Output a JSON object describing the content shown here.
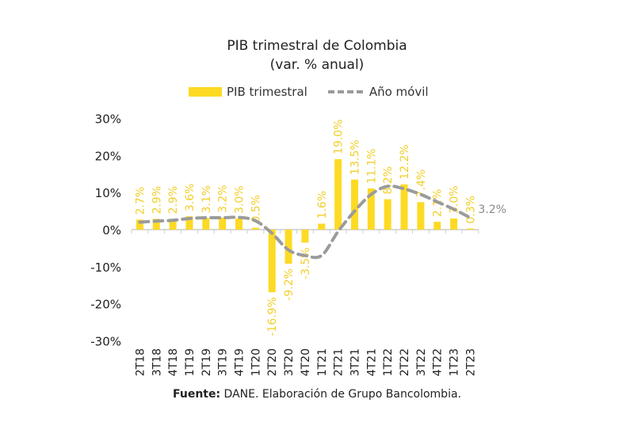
{
  "chart_data": {
    "type": "bar",
    "title": "PIB trimestral de Colombia",
    "subtitle": "(var. % anual)",
    "categories": [
      "2T18",
      "3T18",
      "4T18",
      "1T19",
      "2T19",
      "3T19",
      "4T19",
      "1T20",
      "2T20",
      "3T20",
      "4T20",
      "1T21",
      "2T21",
      "3T21",
      "4T21",
      "1T22",
      "2T22",
      "3T22",
      "4T22",
      "1T23",
      "2T23"
    ],
    "series": [
      {
        "name": "PIB trimestral",
        "type": "bar",
        "color": "#FDDA24",
        "values": [
          2.7,
          2.9,
          2.9,
          3.6,
          3.1,
          3.2,
          3.0,
          0.5,
          -16.9,
          -9.2,
          -3.5,
          1.6,
          19.0,
          13.5,
          11.1,
          8.2,
          12.2,
          7.4,
          2.1,
          3.0,
          0.3
        ],
        "labels": [
          "2.7%",
          "2.9%",
          "2.9%",
          "3.6%",
          "3.1%",
          "3.2%",
          "3.0%",
          "0.5%",
          "-16.9%",
          "-9.2%",
          "-3.5%",
          "1.6%",
          "19.0%",
          "13.5%",
          "11.1%",
          "8.2%",
          "12.2%",
          "7.4%",
          "2.1%",
          "3.0%",
          "0.3%"
        ]
      },
      {
        "name": "Año móvil",
        "type": "line",
        "style": "dashed",
        "color": "#9b9b9b",
        "values": [
          2.0,
          2.3,
          2.5,
          3.0,
          3.2,
          3.2,
          3.3,
          2.4,
          -1.0,
          -5.5,
          -7.0,
          -7.0,
          -0.5,
          5.0,
          9.5,
          11.7,
          11.0,
          9.5,
          7.5,
          5.5,
          3.2
        ],
        "end_label": "3.2%"
      }
    ],
    "yticks": [
      "30%",
      "20%",
      "10%",
      "0%",
      "-10%",
      "-20%",
      "-30%"
    ],
    "ytick_values": [
      30,
      20,
      10,
      0,
      -10,
      -20,
      -30
    ],
    "ylim": [
      -30,
      30
    ],
    "legend_position": "top",
    "source_label": "Fuente:",
    "source_text": "DANE. Elaboración de Grupo Bancolombia."
  }
}
